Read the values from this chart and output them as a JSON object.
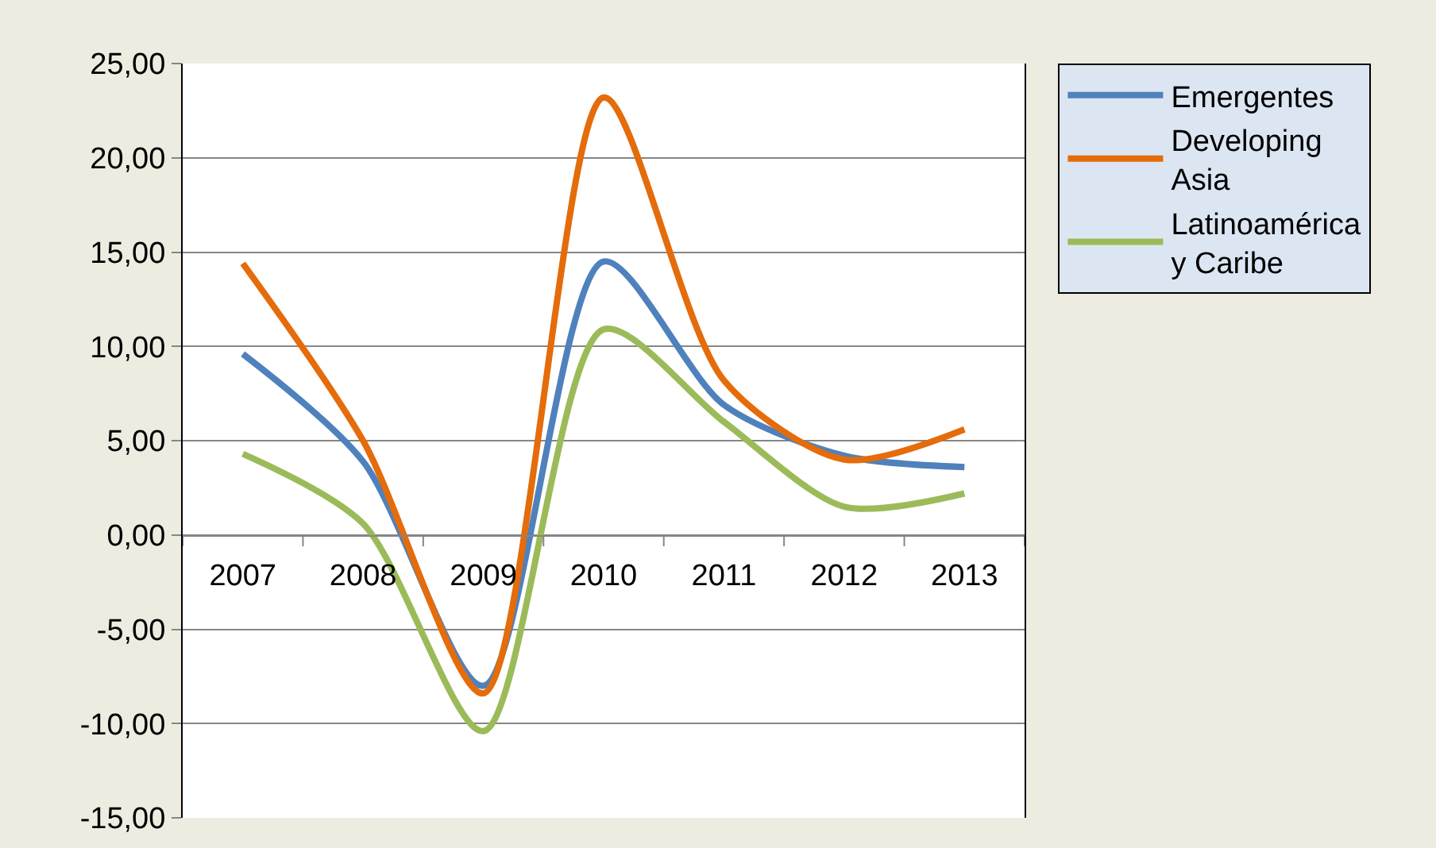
{
  "chart_data": {
    "type": "line",
    "categories": [
      "2007",
      "2008",
      "2009",
      "2010",
      "2011",
      "2012",
      "2013"
    ],
    "series": [
      {
        "name": "Emergentes",
        "color": "#4f81bd",
        "values": [
          9.6,
          3.9,
          -8.0,
          14.5,
          6.9,
          4.2,
          3.6
        ]
      },
      {
        "name": "Developing Asia",
        "color": "#e46c0a",
        "values": [
          14.4,
          5.0,
          -8.4,
          23.2,
          8.2,
          4.0,
          5.6
        ]
      },
      {
        "name": "Latinoamérica y Caribe",
        "color": "#9bbb59",
        "values": [
          4.3,
          0.6,
          -10.4,
          10.9,
          6.0,
          1.5,
          2.2
        ]
      }
    ],
    "ylim": [
      -15,
      25
    ],
    "yticks": [
      {
        "value": -15,
        "label": "-15,00"
      },
      {
        "value": -10,
        "label": "-10,00"
      },
      {
        "value": -5,
        "label": "-5,00"
      },
      {
        "value": 0,
        "label": "0,00"
      },
      {
        "value": 5,
        "label": "5,00"
      },
      {
        "value": 10,
        "label": "10,00"
      },
      {
        "value": 15,
        "label": "15,00"
      },
      {
        "value": 20,
        "label": "20,00"
      },
      {
        "value": 25,
        "label": "25,00"
      }
    ],
    "grid": "y",
    "legend": "top right",
    "marker": "none",
    "line_style": "solid"
  }
}
